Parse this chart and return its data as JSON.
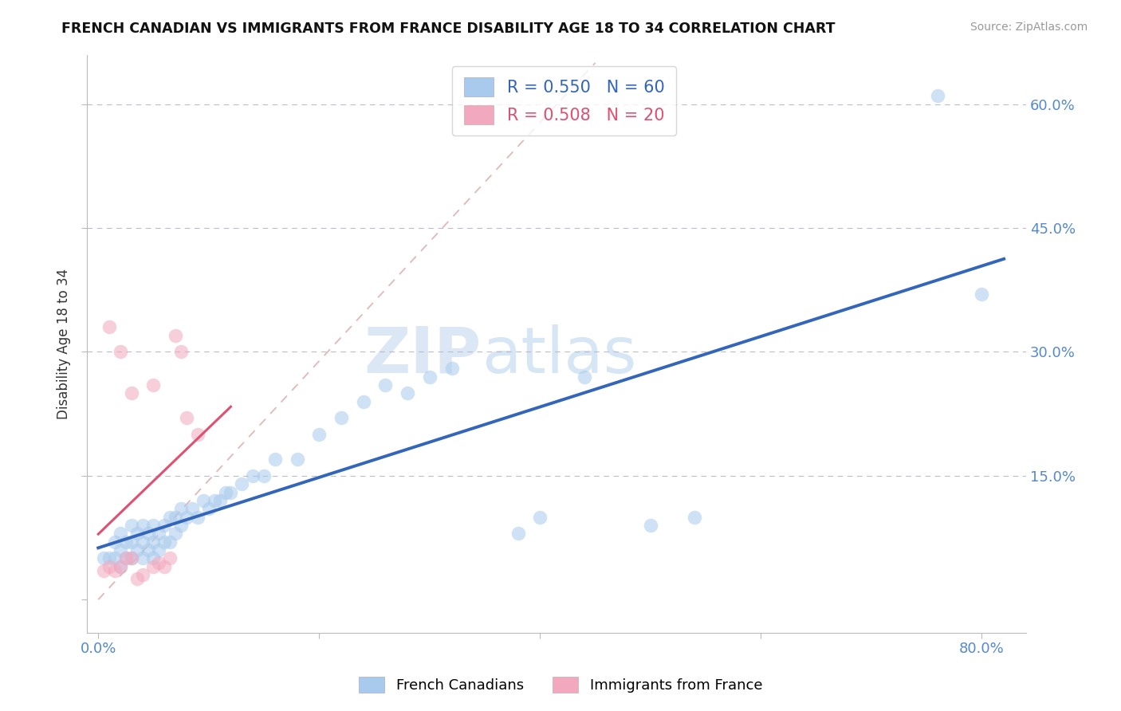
{
  "title": "FRENCH CANADIAN VS IMMIGRANTS FROM FRANCE DISABILITY AGE 18 TO 34 CORRELATION CHART",
  "source_text": "Source: ZipAtlas.com",
  "ylabel": "Disability Age 18 to 34",
  "x_ticks": [
    0.0,
    0.2,
    0.4,
    0.6,
    0.8
  ],
  "x_tick_labels": [
    "0.0%",
    "",
    "",
    "",
    "80.0%"
  ],
  "y_ticks": [
    0.0,
    0.15,
    0.3,
    0.45,
    0.6
  ],
  "y_tick_labels": [
    "",
    "15.0%",
    "30.0%",
    "45.0%",
    "60.0%"
  ],
  "xlim": [
    -0.01,
    0.84
  ],
  "ylim": [
    -0.04,
    0.66
  ],
  "R_blue": 0.55,
  "N_blue": 60,
  "R_pink": 0.508,
  "N_pink": 20,
  "legend_label_blue": "French Canadians",
  "legend_label_pink": "Immigrants from France",
  "blue_color": "#A8CAEC",
  "pink_color": "#F2A8BF",
  "blue_line_color": "#3366BB",
  "pink_line_color": "#E05070",
  "diag_color": "#E0B8B8",
  "watermark_zip": "ZIP",
  "watermark_atlas": "atlas",
  "blue_scatter_x": [
    0.005,
    0.01,
    0.015,
    0.015,
    0.02,
    0.02,
    0.02,
    0.025,
    0.025,
    0.03,
    0.03,
    0.03,
    0.035,
    0.035,
    0.04,
    0.04,
    0.04,
    0.045,
    0.045,
    0.05,
    0.05,
    0.05,
    0.055,
    0.055,
    0.06,
    0.06,
    0.065,
    0.065,
    0.07,
    0.07,
    0.075,
    0.075,
    0.08,
    0.085,
    0.09,
    0.095,
    0.1,
    0.105,
    0.11,
    0.115,
    0.12,
    0.13,
    0.14,
    0.15,
    0.16,
    0.18,
    0.2,
    0.22,
    0.24,
    0.26,
    0.28,
    0.3,
    0.32,
    0.38,
    0.4,
    0.44,
    0.5,
    0.54,
    0.76,
    0.8
  ],
  "blue_scatter_y": [
    0.05,
    0.05,
    0.05,
    0.07,
    0.04,
    0.06,
    0.08,
    0.05,
    0.07,
    0.05,
    0.07,
    0.09,
    0.06,
    0.08,
    0.05,
    0.07,
    0.09,
    0.06,
    0.08,
    0.05,
    0.07,
    0.09,
    0.06,
    0.08,
    0.07,
    0.09,
    0.07,
    0.1,
    0.08,
    0.1,
    0.09,
    0.11,
    0.1,
    0.11,
    0.1,
    0.12,
    0.11,
    0.12,
    0.12,
    0.13,
    0.13,
    0.14,
    0.15,
    0.15,
    0.17,
    0.17,
    0.2,
    0.22,
    0.24,
    0.26,
    0.25,
    0.27,
    0.28,
    0.08,
    0.1,
    0.27,
    0.09,
    0.1,
    0.61,
    0.37
  ],
  "pink_scatter_x": [
    0.005,
    0.01,
    0.015,
    0.02,
    0.025,
    0.03,
    0.035,
    0.04,
    0.05,
    0.055,
    0.06,
    0.065,
    0.07,
    0.075,
    0.08,
    0.09,
    0.01,
    0.02,
    0.03,
    0.05
  ],
  "pink_scatter_y": [
    0.035,
    0.04,
    0.035,
    0.04,
    0.05,
    0.05,
    0.025,
    0.03,
    0.04,
    0.045,
    0.04,
    0.05,
    0.32,
    0.3,
    0.22,
    0.2,
    0.33,
    0.3,
    0.25,
    0.26
  ]
}
